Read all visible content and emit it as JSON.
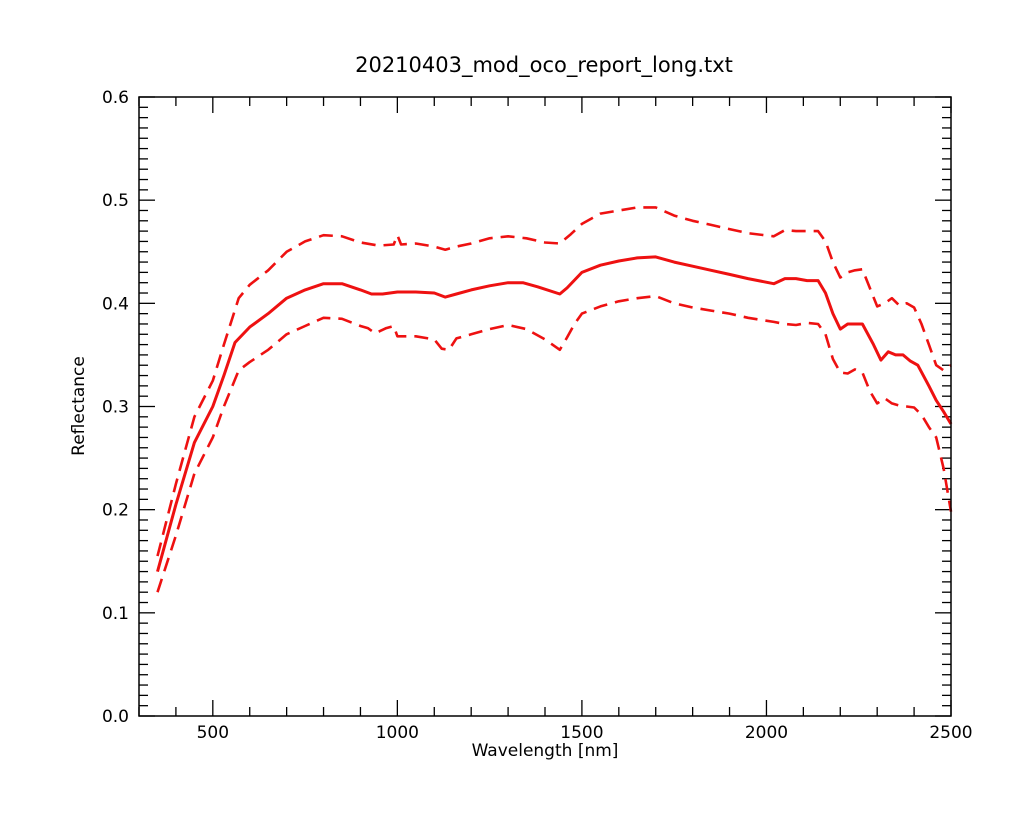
{
  "chart_data": {
    "type": "line",
    "title": "20210403_mod_oco_report_long.txt",
    "xlabel": "Wavelength [nm]",
    "ylabel": "Reflectance",
    "xlim": [
      300,
      2500
    ],
    "ylim": [
      0.0,
      0.6
    ],
    "xticks": [
      500,
      1000,
      1500,
      2000,
      2500
    ],
    "xtick_labels": [
      "500",
      "1000",
      "1500",
      "2000",
      "2500"
    ],
    "yticks": [
      0.0,
      0.1,
      0.2,
      0.3,
      0.4,
      0.5,
      0.6
    ],
    "ytick_labels": [
      "0.0",
      "0.1",
      "0.2",
      "0.3",
      "0.4",
      "0.5",
      "0.6"
    ],
    "grid": false,
    "color": "#ee1111",
    "series": [
      {
        "style": "solid",
        "points": [
          [
            350,
            0.14
          ],
          [
            400,
            0.205
          ],
          [
            450,
            0.265
          ],
          [
            500,
            0.3
          ],
          [
            530,
            0.33
          ],
          [
            560,
            0.362
          ],
          [
            600,
            0.377
          ],
          [
            650,
            0.39
          ],
          [
            700,
            0.405
          ],
          [
            750,
            0.413
          ],
          [
            800,
            0.419
          ],
          [
            850,
            0.419
          ],
          [
            900,
            0.413
          ],
          [
            930,
            0.409
          ],
          [
            960,
            0.409
          ],
          [
            1000,
            0.411
          ],
          [
            1050,
            0.411
          ],
          [
            1100,
            0.41
          ],
          [
            1130,
            0.406
          ],
          [
            1160,
            0.409
          ],
          [
            1200,
            0.413
          ],
          [
            1250,
            0.417
          ],
          [
            1300,
            0.42
          ],
          [
            1340,
            0.42
          ],
          [
            1380,
            0.416
          ],
          [
            1440,
            0.409
          ],
          [
            1460,
            0.415
          ],
          [
            1500,
            0.43
          ],
          [
            1550,
            0.437
          ],
          [
            1600,
            0.441
          ],
          [
            1650,
            0.444
          ],
          [
            1700,
            0.445
          ],
          [
            1750,
            0.44
          ],
          [
            1800,
            0.436
          ],
          [
            1850,
            0.432
          ],
          [
            1900,
            0.428
          ],
          [
            1950,
            0.424
          ],
          [
            2020,
            0.419
          ],
          [
            2050,
            0.424
          ],
          [
            2080,
            0.424
          ],
          [
            2110,
            0.422
          ],
          [
            2140,
            0.422
          ],
          [
            2160,
            0.41
          ],
          [
            2180,
            0.39
          ],
          [
            2200,
            0.375
          ],
          [
            2220,
            0.38
          ],
          [
            2260,
            0.38
          ],
          [
            2290,
            0.36
          ],
          [
            2310,
            0.345
          ],
          [
            2330,
            0.353
          ],
          [
            2350,
            0.35
          ],
          [
            2370,
            0.35
          ],
          [
            2390,
            0.344
          ],
          [
            2410,
            0.34
          ],
          [
            2440,
            0.32
          ],
          [
            2460,
            0.306
          ],
          [
            2480,
            0.295
          ],
          [
            2500,
            0.283
          ]
        ]
      },
      {
        "style": "dashed",
        "points": [
          [
            350,
            0.155
          ],
          [
            400,
            0.225
          ],
          [
            450,
            0.29
          ],
          [
            500,
            0.325
          ],
          [
            530,
            0.36
          ],
          [
            570,
            0.405
          ],
          [
            600,
            0.418
          ],
          [
            650,
            0.432
          ],
          [
            700,
            0.45
          ],
          [
            750,
            0.46
          ],
          [
            800,
            0.466
          ],
          [
            850,
            0.465
          ],
          [
            900,
            0.459
          ],
          [
            950,
            0.456
          ],
          [
            990,
            0.457
          ],
          [
            1000,
            0.466
          ],
          [
            1010,
            0.457
          ],
          [
            1050,
            0.458
          ],
          [
            1100,
            0.455
          ],
          [
            1130,
            0.452
          ],
          [
            1160,
            0.455
          ],
          [
            1200,
            0.458
          ],
          [
            1250,
            0.463
          ],
          [
            1300,
            0.465
          ],
          [
            1350,
            0.463
          ],
          [
            1400,
            0.459
          ],
          [
            1440,
            0.458
          ],
          [
            1470,
            0.467
          ],
          [
            1500,
            0.477
          ],
          [
            1550,
            0.487
          ],
          [
            1600,
            0.49
          ],
          [
            1650,
            0.493
          ],
          [
            1700,
            0.493
          ],
          [
            1750,
            0.485
          ],
          [
            1800,
            0.48
          ],
          [
            1850,
            0.476
          ],
          [
            1900,
            0.472
          ],
          [
            1950,
            0.468
          ],
          [
            2020,
            0.465
          ],
          [
            2050,
            0.471
          ],
          [
            2080,
            0.47
          ],
          [
            2110,
            0.47
          ],
          [
            2140,
            0.47
          ],
          [
            2160,
            0.46
          ],
          [
            2180,
            0.44
          ],
          [
            2200,
            0.425
          ],
          [
            2220,
            0.43
          ],
          [
            2240,
            0.432
          ],
          [
            2260,
            0.433
          ],
          [
            2280,
            0.415
          ],
          [
            2300,
            0.397
          ],
          [
            2320,
            0.4
          ],
          [
            2340,
            0.405
          ],
          [
            2360,
            0.398
          ],
          [
            2380,
            0.4
          ],
          [
            2400,
            0.396
          ],
          [
            2420,
            0.38
          ],
          [
            2440,
            0.36
          ],
          [
            2460,
            0.34
          ],
          [
            2480,
            0.335
          ],
          [
            2500,
            0.34
          ]
        ]
      },
      {
        "style": "dashed",
        "points": [
          [
            350,
            0.12
          ],
          [
            400,
            0.175
          ],
          [
            450,
            0.235
          ],
          [
            500,
            0.27
          ],
          [
            530,
            0.3
          ],
          [
            570,
            0.335
          ],
          [
            600,
            0.343
          ],
          [
            650,
            0.355
          ],
          [
            700,
            0.37
          ],
          [
            750,
            0.378
          ],
          [
            800,
            0.386
          ],
          [
            850,
            0.385
          ],
          [
            900,
            0.378
          ],
          [
            920,
            0.376
          ],
          [
            940,
            0.371
          ],
          [
            970,
            0.376
          ],
          [
            990,
            0.378
          ],
          [
            1000,
            0.368
          ],
          [
            1050,
            0.368
          ],
          [
            1100,
            0.365
          ],
          [
            1120,
            0.356
          ],
          [
            1140,
            0.355
          ],
          [
            1160,
            0.366
          ],
          [
            1200,
            0.37
          ],
          [
            1250,
            0.375
          ],
          [
            1300,
            0.379
          ],
          [
            1350,
            0.375
          ],
          [
            1400,
            0.365
          ],
          [
            1440,
            0.355
          ],
          [
            1460,
            0.367
          ],
          [
            1480,
            0.38
          ],
          [
            1500,
            0.39
          ],
          [
            1550,
            0.397
          ],
          [
            1600,
            0.402
          ],
          [
            1650,
            0.405
          ],
          [
            1700,
            0.407
          ],
          [
            1750,
            0.4
          ],
          [
            1800,
            0.396
          ],
          [
            1850,
            0.393
          ],
          [
            1900,
            0.39
          ],
          [
            1950,
            0.386
          ],
          [
            2020,
            0.382
          ],
          [
            2050,
            0.38
          ],
          [
            2080,
            0.379
          ],
          [
            2110,
            0.381
          ],
          [
            2140,
            0.38
          ],
          [
            2160,
            0.37
          ],
          [
            2180,
            0.346
          ],
          [
            2200,
            0.333
          ],
          [
            2220,
            0.332
          ],
          [
            2240,
            0.336
          ],
          [
            2260,
            0.333
          ],
          [
            2280,
            0.315
          ],
          [
            2300,
            0.303
          ],
          [
            2320,
            0.308
          ],
          [
            2340,
            0.303
          ],
          [
            2360,
            0.301
          ],
          [
            2380,
            0.3
          ],
          [
            2400,
            0.299
          ],
          [
            2420,
            0.292
          ],
          [
            2440,
            0.28
          ],
          [
            2460,
            0.27
          ],
          [
            2480,
            0.24
          ],
          [
            2500,
            0.198
          ]
        ]
      }
    ]
  }
}
